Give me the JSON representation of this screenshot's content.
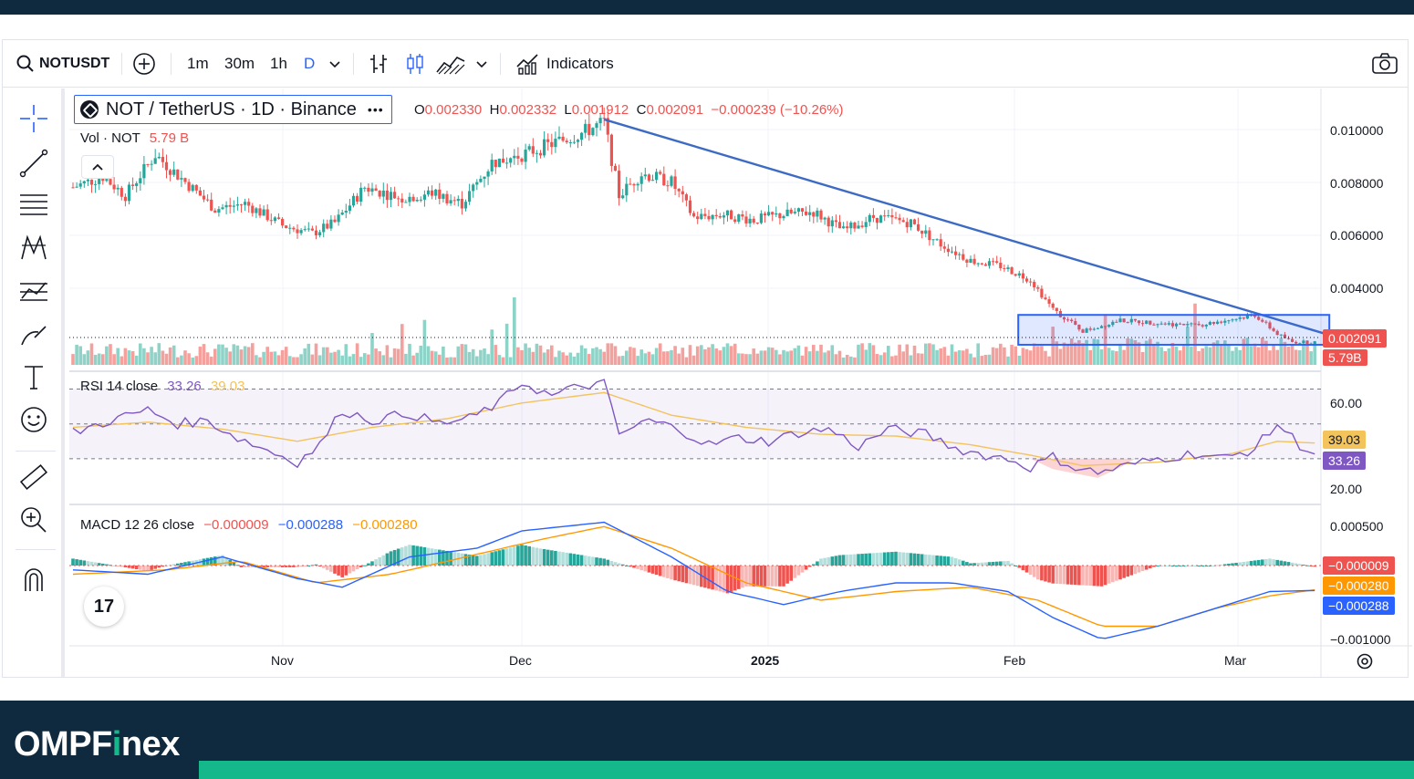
{
  "toolbar": {
    "symbol": "NOTUSDT",
    "intervals": [
      "1m",
      "30m",
      "1h",
      "D"
    ],
    "active_interval": "D",
    "indicators_label": "Indicators"
  },
  "legend": {
    "title": "NOT / TetherUS · 1D · Binance",
    "open_label": "O",
    "open": "0.002330",
    "high_label": "H",
    "high": "0.002332",
    "low_label": "L",
    "low": "0.001912",
    "close_label": "C",
    "close": "0.002091",
    "change": "−0.000239 (−10.26%)",
    "vol_label": "Vol · NOT",
    "vol_value": "5.79 B",
    "rsi_label": "RSI 14 close",
    "rsi_value": "33.26",
    "rsi_ma_value": "39.03",
    "macd_label": "MACD 12 26 close",
    "macd_hist": "−0.000009",
    "macd_line": "−0.000288",
    "macd_signal": "−0.000280"
  },
  "price_tags": {
    "last_price": "0.002091",
    "volume": "5.79B",
    "rsi_ma": "39.03",
    "rsi": "33.26",
    "macd_hist": "−0.000009",
    "macd_signal": "−0.000280",
    "macd_line": "−0.000288"
  },
  "axes": {
    "price_ticks": [
      "0.010000",
      "0.008000",
      "0.006000",
      "0.004000"
    ],
    "rsi_ticks": [
      "60.00",
      "20.00"
    ],
    "macd_ticks": [
      "0.000500",
      "−0.001000"
    ],
    "time_ticks": [
      {
        "label": "Nov",
        "bold": false
      },
      {
        "label": "Dec",
        "bold": false
      },
      {
        "label": "2025",
        "bold": true
      },
      {
        "label": "Feb",
        "bold": false
      },
      {
        "label": "Mar",
        "bold": false
      }
    ]
  },
  "colors": {
    "up": "#26a69a",
    "down": "#ef5350",
    "vol_up": "#8ed3c8",
    "vol_down": "#f4a19e",
    "trendline": "#3d6bc4",
    "range_box": "#2962ff",
    "rsi": "#7e57c2",
    "rsi_ma": "#f3c35c",
    "macd_line": "#2962ff",
    "macd_signal": "#ff9800"
  },
  "brand": {
    "name_a": "OMPF",
    "name_b": "i",
    "name_c": "nex"
  },
  "chart_data": {
    "type": "candlestick",
    "price_start": 0.0078,
    "price_path": [
      [
        0,
        0.0078
      ],
      [
        8,
        0.0082
      ],
      [
        14,
        0.0075
      ],
      [
        22,
        0.009
      ],
      [
        30,
        0.008
      ],
      [
        38,
        0.007
      ],
      [
        46,
        0.0072
      ],
      [
        56,
        0.0064
      ],
      [
        64,
        0.0061
      ],
      [
        70,
        0.0065
      ],
      [
        78,
        0.0078
      ],
      [
        88,
        0.0074
      ],
      [
        96,
        0.0076
      ],
      [
        104,
        0.0072
      ],
      [
        112,
        0.0087
      ],
      [
        120,
        0.009
      ],
      [
        128,
        0.0094
      ],
      [
        136,
        0.0098
      ],
      [
        142,
        0.0102
      ],
      [
        146,
        0.0075
      ],
      [
        152,
        0.0083
      ],
      [
        160,
        0.008
      ],
      [
        166,
        0.0067
      ],
      [
        174,
        0.0068
      ],
      [
        182,
        0.0066
      ],
      [
        190,
        0.0068
      ],
      [
        198,
        0.0069
      ],
      [
        206,
        0.0062
      ],
      [
        214,
        0.0067
      ],
      [
        224,
        0.0065
      ],
      [
        232,
        0.0057
      ],
      [
        240,
        0.0051
      ],
      [
        248,
        0.0049
      ],
      [
        256,
        0.0044
      ],
      [
        262,
        0.0033
      ],
      [
        270,
        0.0025
      ],
      [
        280,
        0.0029
      ],
      [
        290,
        0.0028
      ],
      [
        300,
        0.0027
      ],
      [
        308,
        0.0029
      ],
      [
        316,
        0.0031
      ],
      [
        322,
        0.0024
      ],
      [
        326,
        0.0021
      ]
    ],
    "trendline": {
      "start": [
        142,
        0.0103
      ],
      "end": [
        332,
        0.0024
      ]
    },
    "range_box": {
      "from": 262,
      "to": 332,
      "top": 0.0031,
      "bottom": 0.002
    },
    "rsi_path": [
      [
        0,
        45
      ],
      [
        10,
        52
      ],
      [
        20,
        58
      ],
      [
        28,
        50
      ],
      [
        36,
        52
      ],
      [
        44,
        42
      ],
      [
        52,
        35
      ],
      [
        60,
        28
      ],
      [
        66,
        38
      ],
      [
        72,
        58
      ],
      [
        80,
        52
      ],
      [
        90,
        56
      ],
      [
        98,
        50
      ],
      [
        106,
        53
      ],
      [
        114,
        62
      ],
      [
        120,
        74
      ],
      [
        128,
        66
      ],
      [
        136,
        72
      ],
      [
        142,
        73
      ],
      [
        146,
        44
      ],
      [
        154,
        52
      ],
      [
        162,
        47
      ],
      [
        170,
        38
      ],
      [
        178,
        42
      ],
      [
        186,
        40
      ],
      [
        194,
        45
      ],
      [
        202,
        47
      ],
      [
        210,
        37
      ],
      [
        218,
        47
      ],
      [
        228,
        44
      ],
      [
        236,
        36
      ],
      [
        244,
        32
      ],
      [
        250,
        30
      ],
      [
        256,
        25
      ],
      [
        262,
        31
      ],
      [
        268,
        25
      ],
      [
        274,
        22
      ],
      [
        280,
        25
      ],
      [
        290,
        30
      ],
      [
        300,
        33
      ],
      [
        308,
        30
      ],
      [
        316,
        36
      ],
      [
        322,
        50
      ],
      [
        328,
        38
      ],
      [
        332,
        33
      ]
    ],
    "rsi_ma_path": [
      [
        0,
        48
      ],
      [
        20,
        51
      ],
      [
        40,
        47
      ],
      [
        60,
        40
      ],
      [
        80,
        48
      ],
      [
        100,
        53
      ],
      [
        120,
        62
      ],
      [
        142,
        68
      ],
      [
        160,
        55
      ],
      [
        180,
        48
      ],
      [
        200,
        44
      ],
      [
        220,
        43
      ],
      [
        240,
        38
      ],
      [
        256,
        32
      ],
      [
        270,
        26
      ],
      [
        290,
        28
      ],
      [
        310,
        33
      ],
      [
        322,
        40
      ],
      [
        332,
        39
      ]
    ],
    "macd_line_path": [
      [
        0,
        -5e-05
      ],
      [
        20,
        -0.0001
      ],
      [
        40,
        0.0001
      ],
      [
        60,
        -0.00015
      ],
      [
        72,
        -0.00025
      ],
      [
        90,
        0.0001
      ],
      [
        108,
        0.0002
      ],
      [
        120,
        0.0004
      ],
      [
        142,
        0.0005
      ],
      [
        160,
        0.0001
      ],
      [
        175,
        -0.0003
      ],
      [
        190,
        -0.00045
      ],
      [
        205,
        -0.0003
      ],
      [
        220,
        -0.0002
      ],
      [
        235,
        -0.0002
      ],
      [
        250,
        -0.0003
      ],
      [
        262,
        -0.0006
      ],
      [
        275,
        -0.00085
      ],
      [
        290,
        -0.0007
      ],
      [
        305,
        -0.0005
      ],
      [
        320,
        -0.0003
      ],
      [
        332,
        -0.000288
      ]
    ],
    "macd_signal_path": [
      [
        0,
        -0.0001
      ],
      [
        25,
        -5e-05
      ],
      [
        45,
        5e-05
      ],
      [
        65,
        -0.0002
      ],
      [
        85,
        -0.0001
      ],
      [
        105,
        0.0001
      ],
      [
        125,
        0.0003
      ],
      [
        142,
        0.00045
      ],
      [
        160,
        0.0002
      ],
      [
        180,
        -0.0002
      ],
      [
        200,
        -0.0004
      ],
      [
        220,
        -0.0003
      ],
      [
        240,
        -0.00025
      ],
      [
        258,
        -0.0004
      ],
      [
        275,
        -0.0007
      ],
      [
        290,
        -0.0007
      ],
      [
        305,
        -0.0005
      ],
      [
        320,
        -0.00035
      ],
      [
        332,
        -0.00028
      ]
    ]
  }
}
